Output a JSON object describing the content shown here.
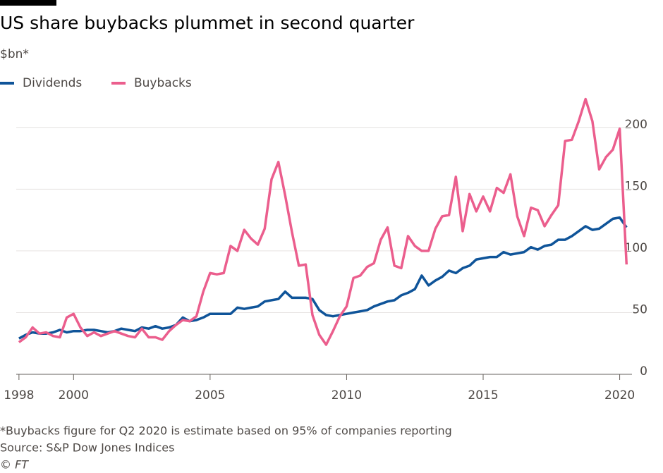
{
  "chart_data": {
    "type": "line",
    "title": "US share buybacks plummet in second quarter",
    "subtitle": "$bn*",
    "note": "*Buybacks figure for Q2 2020 is estimate based on 95% of companies reporting",
    "source": "Source: S&P Dow Jones Indices",
    "credit": "© FT",
    "x": [
      1998,
      1998.25,
      1998.5,
      1998.75,
      1999,
      1999.25,
      1999.5,
      1999.75,
      2000,
      2000.25,
      2000.5,
      2000.75,
      2001,
      2001.25,
      2001.5,
      2001.75,
      2002,
      2002.25,
      2002.5,
      2002.75,
      2003,
      2003.25,
      2003.5,
      2003.75,
      2004,
      2004.25,
      2004.5,
      2004.75,
      2005,
      2005.25,
      2005.5,
      2005.75,
      2006,
      2006.25,
      2006.5,
      2006.75,
      2007,
      2007.25,
      2007.5,
      2007.75,
      2008,
      2008.25,
      2008.5,
      2008.75,
      2009,
      2009.25,
      2009.5,
      2009.75,
      2010,
      2010.25,
      2010.5,
      2010.75,
      2011,
      2011.25,
      2011.5,
      2011.75,
      2012,
      2012.25,
      2012.5,
      2012.75,
      2013,
      2013.25,
      2013.5,
      2013.75,
      2014,
      2014.25,
      2014.5,
      2014.75,
      2015,
      2015.25,
      2015.5,
      2015.75,
      2016,
      2016.25,
      2016.5,
      2016.75,
      2017,
      2017.25,
      2017.5,
      2017.75,
      2018,
      2018.25,
      2018.5,
      2018.75,
      2019,
      2019.25,
      2019.5,
      2019.75,
      2020,
      2020.25
    ],
    "series": [
      {
        "name": "Dividends",
        "color": "#0f5499",
        "values": [
          29,
          32,
          34,
          33,
          33,
          34,
          36,
          34,
          35,
          35,
          36,
          36,
          35,
          34,
          35,
          37,
          36,
          35,
          38,
          37,
          39,
          37,
          38,
          40,
          46,
          43,
          44,
          46,
          49,
          49,
          49,
          49,
          54,
          53,
          54,
          55,
          59,
          60,
          61,
          67,
          62,
          62,
          62,
          61,
          52,
          48,
          47,
          48,
          49,
          50,
          51,
          52,
          55,
          57,
          59,
          60,
          64,
          66,
          69,
          80,
          72,
          76,
          79,
          84,
          82,
          86,
          88,
          93,
          94,
          95,
          95,
          99,
          97,
          98,
          99,
          103,
          101,
          104,
          105,
          109,
          109,
          112,
          116,
          120,
          117,
          118,
          122,
          126,
          127,
          119
        ]
      },
      {
        "name": "Buybacks",
        "color": "#eb5e8d",
        "values": [
          26,
          30,
          38,
          33,
          34,
          31,
          30,
          46,
          49,
          38,
          31,
          34,
          31,
          33,
          35,
          33,
          31,
          30,
          37,
          30,
          30,
          28,
          35,
          40,
          44,
          43,
          47,
          67,
          82,
          81,
          82,
          104,
          100,
          117,
          110,
          105,
          118,
          158,
          172,
          145,
          115,
          88,
          89,
          48,
          32,
          24,
          35,
          47,
          55,
          78,
          80,
          87,
          90,
          109,
          119,
          88,
          86,
          112,
          104,
          100,
          100,
          118,
          128,
          129,
          160,
          116,
          146,
          132,
          144,
          132,
          151,
          147,
          162,
          128,
          112,
          135,
          133,
          120,
          129,
          137,
          189,
          190,
          205,
          223,
          205,
          166,
          176,
          182,
          199,
          89
        ]
      }
    ],
    "xlim": [
      1997.9,
      2020.45
    ],
    "xticks": [
      1998,
      2000,
      2005,
      2010,
      2015,
      2020
    ],
    "ylim": [
      0,
      225
    ],
    "yticks": [
      0,
      50,
      100,
      150,
      200
    ],
    "grid": true
  }
}
